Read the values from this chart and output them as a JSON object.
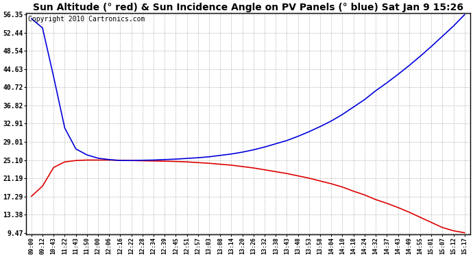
{
  "title": "Sun Altitude (° red) & Sun Incidence Angle on PV Panels (° blue) Sat Jan 9 15:26",
  "copyright": "Copyright 2010 Cartronics.com",
  "yticks": [
    9.47,
    13.38,
    17.29,
    21.19,
    25.1,
    29.01,
    32.91,
    36.82,
    40.72,
    44.63,
    48.54,
    52.44,
    56.35
  ],
  "xtick_labels": [
    "09:00",
    "09:12",
    "10:43",
    "11:22",
    "11:43",
    "11:50",
    "12:00",
    "12:06",
    "12:16",
    "12:22",
    "12:28",
    "12:34",
    "12:39",
    "12:45",
    "12:51",
    "12:57",
    "13:03",
    "13:08",
    "13:14",
    "13:20",
    "13:26",
    "13:32",
    "13:38",
    "13:43",
    "13:48",
    "13:53",
    "13:58",
    "14:04",
    "14:10",
    "14:18",
    "14:24",
    "14:32",
    "14:37",
    "14:43",
    "14:49",
    "14:55",
    "15:01",
    "15:07",
    "15:12",
    "15:17"
  ],
  "ymin": 9.47,
  "ymax": 56.35,
  "background_color": "#ffffff",
  "grid_color": "#bbbbbb",
  "line_color_red": "#dd0000",
  "line_color_blue": "#0000dd",
  "title_fontsize": 10,
  "copyright_fontsize": 7,
  "red_y": [
    17.3,
    19.5,
    23.5,
    24.7,
    25.0,
    25.1,
    25.1,
    25.1,
    25.05,
    25.0,
    24.95,
    24.9,
    24.85,
    24.8,
    24.7,
    24.55,
    24.4,
    24.2,
    24.0,
    23.7,
    23.4,
    23.0,
    22.6,
    22.2,
    21.7,
    21.2,
    20.6,
    20.0,
    19.3,
    18.4,
    17.6,
    16.6,
    15.8,
    14.9,
    13.9,
    12.8,
    11.7,
    10.6,
    9.9,
    9.47
  ],
  "blue_y": [
    55.5,
    53.5,
    43.0,
    32.0,
    27.5,
    26.2,
    25.5,
    25.2,
    25.0,
    25.0,
    25.05,
    25.1,
    25.2,
    25.3,
    25.45,
    25.6,
    25.8,
    26.1,
    26.4,
    26.8,
    27.3,
    27.9,
    28.6,
    29.3,
    30.2,
    31.2,
    32.3,
    33.5,
    34.9,
    36.5,
    38.1,
    40.0,
    41.7,
    43.5,
    45.4,
    47.4,
    49.5,
    51.7,
    53.9,
    56.35
  ]
}
